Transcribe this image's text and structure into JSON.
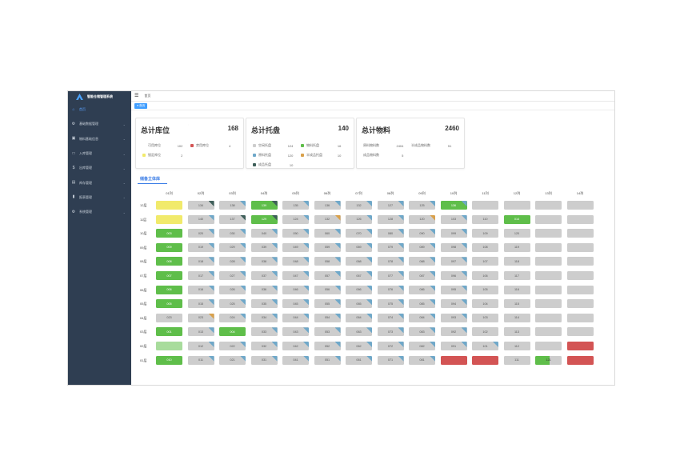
{
  "app": {
    "title": "智能仓储管理系统"
  },
  "sidebar": {
    "items": [
      {
        "label": "首页",
        "icon": "home-icon",
        "active": true
      },
      {
        "label": "基础数据管理",
        "icon": "stack-icon"
      },
      {
        "label": "物料基础信息",
        "icon": "cube-icon"
      },
      {
        "label": "入库管理",
        "icon": "inbound-icon"
      },
      {
        "label": "出库管理",
        "icon": "outbound-icon"
      },
      {
        "label": "库存管理",
        "icon": "inventory-icon"
      },
      {
        "label": "报表管理",
        "icon": "chart-icon"
      },
      {
        "label": "系统管理",
        "icon": "settings-icon"
      }
    ]
  },
  "topbar": {
    "breadcrumb": "首页"
  },
  "tags": [
    {
      "label": "首页"
    }
  ],
  "cards": [
    {
      "title": "总计库位",
      "value": "168",
      "items": [
        {
          "label": "可用库位",
          "value": "102",
          "color": ""
        },
        {
          "label": "禁用库位",
          "value": "4",
          "color": "#d35454"
        },
        {
          "label": "锁定库位",
          "value": "2",
          "color": "#f1ea6b"
        }
      ]
    },
    {
      "title": "总计托盘",
      "value": "140",
      "items": [
        {
          "label": "空闲托盘",
          "value": "124",
          "color": "#cdcdcd"
        },
        {
          "label": "物料托盘",
          "value": "16",
          "color": "#5fbe4a"
        },
        {
          "label": "原料托盘",
          "value": "120",
          "color": "#6fa8c9"
        },
        {
          "label": "半成品托盘",
          "value": "10",
          "color": "#d9a14c"
        },
        {
          "label": "成品托盘",
          "value": "10",
          "color": "#3f5f5a"
        }
      ]
    },
    {
      "title": "总计物料",
      "value": "2460",
      "items": [
        {
          "label": "原料物料数",
          "value": "2404"
        },
        {
          "label": "半成品物料数",
          "value": "51"
        },
        {
          "label": "成品物料数",
          "value": "5"
        }
      ]
    }
  ],
  "warehouse": {
    "title": "储备立体库",
    "columns": [
      "01列",
      "02列",
      "03列",
      "04列",
      "05列",
      "06列",
      "07列",
      "08列",
      "09列",
      "10列",
      "11列",
      "12列",
      "13列",
      "14列"
    ],
    "rows": [
      {
        "label": "12层",
        "cells": [
          {
            "t": "",
            "c": "yellow"
          },
          {
            "t": "134",
            "c": "gray",
            "k": "dark"
          },
          {
            "t": "138",
            "c": "gray",
            "k": "blue"
          },
          {
            "t": "139",
            "c": "green",
            "k": "dark"
          },
          {
            "t": "135",
            "c": "gray",
            "k": "blue"
          },
          {
            "t": "136",
            "c": "gray",
            "k": "blue"
          },
          {
            "t": "132",
            "c": "gray",
            "k": "blue"
          },
          {
            "t": "127",
            "c": "gray",
            "k": "blue"
          },
          {
            "t": "125",
            "c": "gray",
            "k": "blue"
          },
          {
            "t": "136",
            "c": "green",
            "k": "blue"
          },
          {
            "t": "",
            "c": "gray"
          },
          {
            "t": "",
            "c": "gray"
          },
          {
            "t": "",
            "c": "gray"
          },
          {
            "t": "",
            "c": "gray"
          }
        ]
      },
      {
        "label": "11层",
        "cells": [
          {
            "t": "",
            "c": "yellow"
          },
          {
            "t": "140",
            "c": "gray",
            "k": "blue"
          },
          {
            "t": "137",
            "c": "gray",
            "k": "dark"
          },
          {
            "t": "129",
            "c": "green",
            "k": "dark"
          },
          {
            "t": "124",
            "c": "gray",
            "k": "blue"
          },
          {
            "t": "132",
            "c": "gray",
            "k": "orange"
          },
          {
            "t": "126",
            "c": "gray",
            "k": "blue"
          },
          {
            "t": "128",
            "c": "gray",
            "k": "blue"
          },
          {
            "t": "120",
            "c": "gray",
            "k": "orange"
          },
          {
            "t": "103",
            "c": "gray",
            "k": "blue"
          },
          {
            "t": "110",
            "c": "gray"
          },
          {
            "t": "014",
            "c": "green"
          },
          {
            "t": "",
            "c": "gray"
          },
          {
            "t": "",
            "c": "gray"
          }
        ]
      },
      {
        "label": "10层",
        "cells": [
          {
            "t": "003",
            "c": "green"
          },
          {
            "t": "020",
            "c": "gray",
            "k": "blue"
          },
          {
            "t": "030",
            "c": "gray",
            "k": "blue"
          },
          {
            "t": "040",
            "c": "gray",
            "k": "blue"
          },
          {
            "t": "050",
            "c": "gray",
            "k": "blue"
          },
          {
            "t": "060",
            "c": "gray",
            "k": "blue"
          },
          {
            "t": "070",
            "c": "gray",
            "k": "blue"
          },
          {
            "t": "080",
            "c": "gray",
            "k": "blue"
          },
          {
            "t": "090",
            "c": "gray",
            "k": "blue"
          },
          {
            "t": "099",
            "c": "gray",
            "k": "blue"
          },
          {
            "t": "109",
            "c": "gray"
          },
          {
            "t": "120",
            "c": "gray"
          },
          {
            "t": "",
            "c": "gray"
          },
          {
            "t": "",
            "c": "gray"
          }
        ]
      },
      {
        "label": "09层",
        "cells": [
          {
            "t": "009",
            "c": "green"
          },
          {
            "t": "019",
            "c": "gray",
            "k": "blue"
          },
          {
            "t": "029",
            "c": "gray",
            "k": "blue"
          },
          {
            "t": "039",
            "c": "gray",
            "k": "blue"
          },
          {
            "t": "049",
            "c": "gray",
            "k": "blue"
          },
          {
            "t": "059",
            "c": "gray",
            "k": "blue"
          },
          {
            "t": "069",
            "c": "gray",
            "k": "blue"
          },
          {
            "t": "079",
            "c": "gray",
            "k": "blue"
          },
          {
            "t": "089",
            "c": "gray",
            "k": "blue"
          },
          {
            "t": "098",
            "c": "gray",
            "k": "blue"
          },
          {
            "t": "108",
            "c": "gray"
          },
          {
            "t": "119",
            "c": "gray"
          },
          {
            "t": "",
            "c": "gray"
          },
          {
            "t": "",
            "c": "gray"
          }
        ]
      },
      {
        "label": "08层",
        "cells": [
          {
            "t": "008",
            "c": "green"
          },
          {
            "t": "018",
            "c": "gray",
            "k": "blue"
          },
          {
            "t": "028",
            "c": "gray",
            "k": "blue"
          },
          {
            "t": "038",
            "c": "gray",
            "k": "blue"
          },
          {
            "t": "048",
            "c": "gray",
            "k": "blue"
          },
          {
            "t": "058",
            "c": "gray",
            "k": "blue"
          },
          {
            "t": "068",
            "c": "gray",
            "k": "blue"
          },
          {
            "t": "078",
            "c": "gray",
            "k": "blue"
          },
          {
            "t": "088",
            "c": "gray",
            "k": "blue"
          },
          {
            "t": "097",
            "c": "gray",
            "k": "blue"
          },
          {
            "t": "107",
            "c": "gray"
          },
          {
            "t": "118",
            "c": "gray"
          },
          {
            "t": "",
            "c": "gray"
          },
          {
            "t": "",
            "c": "gray"
          }
        ]
      },
      {
        "label": "07层",
        "cells": [
          {
            "t": "007",
            "c": "green"
          },
          {
            "t": "017",
            "c": "gray",
            "k": "blue"
          },
          {
            "t": "027",
            "c": "gray",
            "k": "blue"
          },
          {
            "t": "037",
            "c": "gray",
            "k": "blue"
          },
          {
            "t": "047",
            "c": "gray",
            "k": "blue"
          },
          {
            "t": "057",
            "c": "gray",
            "k": "blue"
          },
          {
            "t": "067",
            "c": "gray",
            "k": "blue"
          },
          {
            "t": "077",
            "c": "gray",
            "k": "blue"
          },
          {
            "t": "087",
            "c": "gray",
            "k": "blue"
          },
          {
            "t": "096",
            "c": "gray",
            "k": "blue"
          },
          {
            "t": "106",
            "c": "gray"
          },
          {
            "t": "117",
            "c": "gray"
          },
          {
            "t": "",
            "c": "gray"
          },
          {
            "t": "",
            "c": "gray"
          }
        ]
      },
      {
        "label": "06层",
        "cells": [
          {
            "t": "006",
            "c": "green"
          },
          {
            "t": "016",
            "c": "gray",
            "k": "blue"
          },
          {
            "t": "026",
            "c": "gray",
            "k": "blue"
          },
          {
            "t": "036",
            "c": "gray",
            "k": "blue"
          },
          {
            "t": "046",
            "c": "gray",
            "k": "blue"
          },
          {
            "t": "056",
            "c": "gray",
            "k": "blue"
          },
          {
            "t": "066",
            "c": "gray",
            "k": "blue"
          },
          {
            "t": "076",
            "c": "gray",
            "k": "blue"
          },
          {
            "t": "086",
            "c": "gray",
            "k": "blue"
          },
          {
            "t": "095",
            "c": "gray",
            "k": "blue"
          },
          {
            "t": "105",
            "c": "gray"
          },
          {
            "t": "116",
            "c": "gray"
          },
          {
            "t": "",
            "c": "gray"
          },
          {
            "t": "",
            "c": "gray"
          }
        ]
      },
      {
        "label": "05层",
        "cells": [
          {
            "t": "005",
            "c": "green"
          },
          {
            "t": "015",
            "c": "gray",
            "k": "blue"
          },
          {
            "t": "025",
            "c": "gray",
            "k": "blue"
          },
          {
            "t": "035",
            "c": "gray",
            "k": "blue"
          },
          {
            "t": "045",
            "c": "gray",
            "k": "blue"
          },
          {
            "t": "055",
            "c": "gray",
            "k": "blue"
          },
          {
            "t": "065",
            "c": "gray",
            "k": "blue"
          },
          {
            "t": "075",
            "c": "gray",
            "k": "blue"
          },
          {
            "t": "085",
            "c": "gray",
            "k": "blue"
          },
          {
            "t": "094",
            "c": "gray",
            "k": "blue"
          },
          {
            "t": "104",
            "c": "gray"
          },
          {
            "t": "115",
            "c": "gray"
          },
          {
            "t": "",
            "c": "gray"
          },
          {
            "t": "",
            "c": "gray"
          }
        ]
      },
      {
        "label": "04层",
        "cells": [
          {
            "t": "023",
            "c": "gray"
          },
          {
            "t": "023",
            "c": "gray",
            "k": "orange"
          },
          {
            "t": "024",
            "c": "gray",
            "k": "blue"
          },
          {
            "t": "034",
            "c": "gray",
            "k": "blue"
          },
          {
            "t": "044",
            "c": "gray",
            "k": "blue"
          },
          {
            "t": "054",
            "c": "gray",
            "k": "blue"
          },
          {
            "t": "064",
            "c": "gray",
            "k": "blue"
          },
          {
            "t": "074",
            "c": "gray",
            "k": "blue"
          },
          {
            "t": "084",
            "c": "gray",
            "k": "blue"
          },
          {
            "t": "093",
            "c": "gray",
            "k": "blue"
          },
          {
            "t": "103",
            "c": "gray"
          },
          {
            "t": "114",
            "c": "gray"
          },
          {
            "t": "",
            "c": "gray"
          },
          {
            "t": "",
            "c": "gray"
          }
        ]
      },
      {
        "label": "03层",
        "cells": [
          {
            "t": "001",
            "c": "green"
          },
          {
            "t": "013",
            "c": "gray",
            "k": "blue"
          },
          {
            "t": "004",
            "c": "green"
          },
          {
            "t": "033",
            "c": "gray",
            "k": "blue"
          },
          {
            "t": "043",
            "c": "gray",
            "k": "blue"
          },
          {
            "t": "053",
            "c": "gray",
            "k": "blue"
          },
          {
            "t": "063",
            "c": "gray",
            "k": "blue"
          },
          {
            "t": "073",
            "c": "gray",
            "k": "blue"
          },
          {
            "t": "083",
            "c": "gray",
            "k": "blue"
          },
          {
            "t": "092",
            "c": "gray",
            "k": "blue"
          },
          {
            "t": "102",
            "c": "gray"
          },
          {
            "t": "113",
            "c": "gray"
          },
          {
            "t": "",
            "c": "gray"
          },
          {
            "t": "",
            "c": "gray"
          }
        ]
      },
      {
        "label": "02层",
        "cells": [
          {
            "t": "",
            "c": "lightgreen"
          },
          {
            "t": "012",
            "c": "gray",
            "k": "blue"
          },
          {
            "t": "022",
            "c": "gray",
            "k": "blue"
          },
          {
            "t": "032",
            "c": "gray",
            "k": "blue"
          },
          {
            "t": "042",
            "c": "gray",
            "k": "blue"
          },
          {
            "t": "052",
            "c": "gray",
            "k": "blue"
          },
          {
            "t": "062",
            "c": "gray",
            "k": "blue"
          },
          {
            "t": "072",
            "c": "gray",
            "k": "blue"
          },
          {
            "t": "082",
            "c": "gray",
            "k": "blue"
          },
          {
            "t": "091",
            "c": "gray",
            "k": "blue"
          },
          {
            "t": "101",
            "c": "gray",
            "k": "blue"
          },
          {
            "t": "112",
            "c": "gray"
          },
          {
            "t": "",
            "c": "gray"
          },
          {
            "t": "",
            "c": "red"
          }
        ]
      },
      {
        "label": "01层",
        "cells": [
          {
            "t": "010",
            "c": "green"
          },
          {
            "t": "011",
            "c": "gray",
            "k": "blue"
          },
          {
            "t": "021",
            "c": "gray",
            "k": "blue"
          },
          {
            "t": "031",
            "c": "gray",
            "k": "blue"
          },
          {
            "t": "041",
            "c": "gray",
            "k": "blue"
          },
          {
            "t": "051",
            "c": "gray",
            "k": "blue"
          },
          {
            "t": "061",
            "c": "gray",
            "k": "blue"
          },
          {
            "t": "071",
            "c": "gray",
            "k": "blue"
          },
          {
            "t": "081",
            "c": "gray",
            "k": "blue"
          },
          {
            "t": "",
            "c": "red"
          },
          {
            "t": "",
            "c": "red"
          },
          {
            "t": "111",
            "c": "gray"
          },
          {
            "t": "121",
            "c": "half"
          },
          {
            "t": "",
            "c": "red"
          }
        ]
      }
    ]
  }
}
